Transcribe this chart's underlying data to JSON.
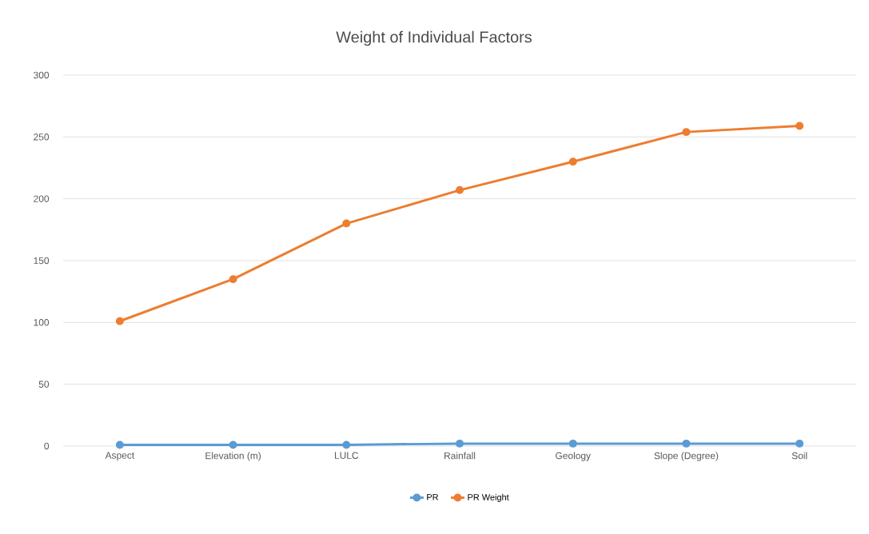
{
  "chart_data": {
    "type": "line",
    "title": "Weight of Individual Factors",
    "categories": [
      "Aspect",
      "Elevation (m)",
      "LULC",
      "Rainfall",
      "Geology",
      "Slope (Degree)",
      "Soil"
    ],
    "series": [
      {
        "name": "PR",
        "color": "#5b9bd5",
        "values": [
          1,
          1,
          1,
          2,
          2,
          2,
          2
        ]
      },
      {
        "name": "PR Weight",
        "color": "#ed7d31",
        "values": [
          101,
          135,
          180,
          207,
          230,
          254,
          259
        ]
      }
    ],
    "ylim": [
      0,
      300
    ],
    "yticks": [
      0,
      50,
      100,
      150,
      200,
      250,
      300
    ],
    "grid": "y",
    "legend": "bottom",
    "marker": "circle",
    "line_style": "solid"
  }
}
